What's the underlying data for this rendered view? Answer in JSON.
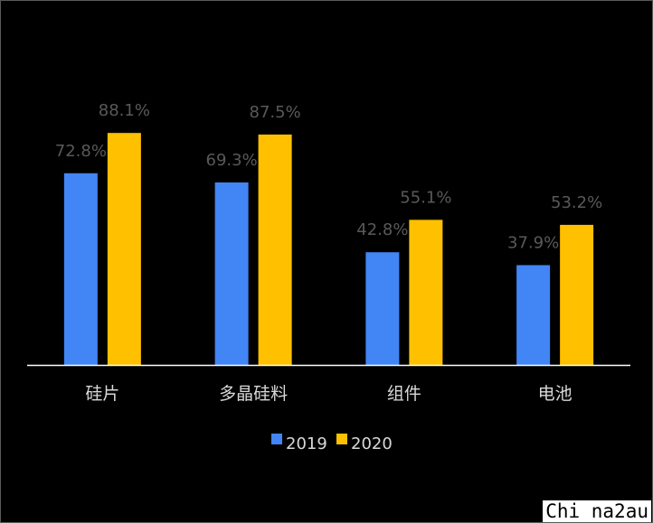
{
  "chart_data": {
    "type": "bar",
    "categories": [
      "硅片",
      "多晶硅料",
      "组件",
      "电池"
    ],
    "series": [
      {
        "name": "2019",
        "values": [
          72.8,
          69.3,
          42.8,
          37.9
        ],
        "labels": [
          "72.8%",
          "69.3%",
          "42.8%",
          "37.9%"
        ],
        "color": "#4285f4"
      },
      {
        "name": "2020",
        "values": [
          88.1,
          87.5,
          55.1,
          53.2
        ],
        "labels": [
          "88.1%",
          "87.5%",
          "55.1%",
          "53.2%"
        ],
        "color": "#ffc000"
      }
    ],
    "unit": "%",
    "ylim": [
      0,
      100
    ],
    "grid": false,
    "legend": "bottom-center",
    "title": "",
    "xlabel": "",
    "ylabel": ""
  },
  "watermark": "Chi na2au",
  "colors": {
    "background": "#000000",
    "axis": "#ffffff",
    "label": "#595959",
    "category": "#d9d9d9"
  }
}
